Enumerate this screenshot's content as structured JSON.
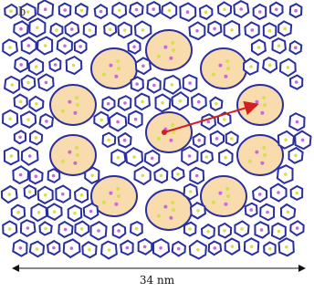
{
  "figure": {
    "panel_letter": "b",
    "scale_bar_label": "34 nm",
    "colors": {
      "network": "#2b2f9e",
      "highlight_fill": "#f8dcae",
      "arrow": "#d21f1f",
      "dot_magenta": "#c76bd1",
      "dot_yellow": "#d8df4e"
    }
  }
}
